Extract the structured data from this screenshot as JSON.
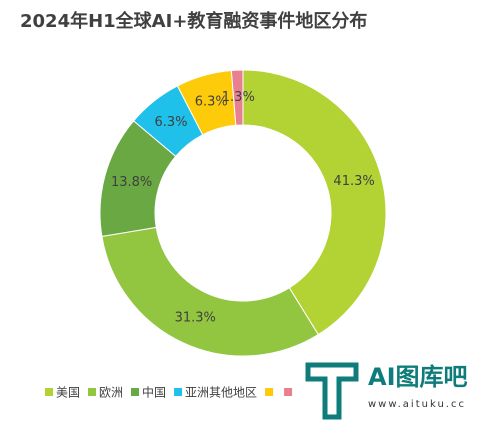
{
  "chart_data": {
    "type": "pie",
    "title": "2024年H1全球AI+教育融资事件地区分布",
    "categories": [
      "美国",
      "欧洲",
      "中国",
      "亚洲其他地区",
      null,
      null
    ],
    "values": [
      41.3,
      31.3,
      13.8,
      6.3,
      6.3,
      1.3
    ],
    "value_labels": [
      "41.3%",
      "31.3%",
      "13.8%",
      "6.3%",
      "6.3%",
      "1.3%"
    ],
    "colors": [
      "#b3d335",
      "#92c641",
      "#6aa843",
      "#1fc0ea",
      "#fdcb0a",
      "#e8808f"
    ],
    "legend": "bottom"
  },
  "watermark": {
    "name": "AI图库吧",
    "url": "www.aituku.cc"
  }
}
